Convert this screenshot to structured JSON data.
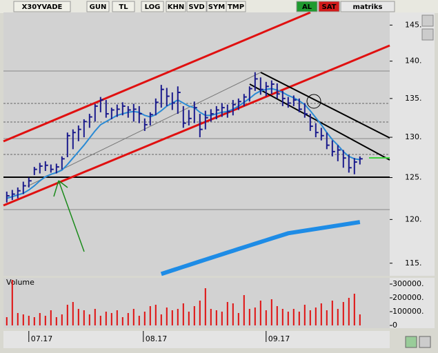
{
  "toolbar": {
    "symbol": "X30YVADE",
    "buttons": [
      "GUN",
      "TL",
      "LOG",
      "KHN",
      "SVD",
      "SYM",
      "TMP"
    ],
    "buy": "AL",
    "sell": "SAT",
    "brand": "matriks"
  },
  "chart_data": [
    {
      "type": "ohlc",
      "bar_color": "#1a1a8c",
      "log_scale": true,
      "ylim": [
        113.6,
        146.8
      ],
      "xlim": [
        -0.6,
        69.4
      ],
      "yticks": [
        {
          "value": 115,
          "label": "115."
        },
        {
          "value": 120,
          "label": "120."
        },
        {
          "value": 125,
          "label": "125."
        },
        {
          "value": 130,
          "label": "130."
        },
        {
          "value": 135,
          "label": "135."
        },
        {
          "value": 140,
          "label": "140."
        },
        {
          "value": 145,
          "label": "145."
        }
      ],
      "high": [
        123.3,
        123.5,
        123.8,
        124.5,
        125.0,
        126.3,
        126.8,
        127.0,
        126.6,
        126.7,
        127.6,
        130.6,
        131.0,
        131.5,
        132.3,
        133.0,
        134.3,
        135.2,
        134.8,
        133.8,
        134.2,
        134.5,
        134.0,
        134.3,
        134.0,
        132.4,
        133.2,
        135.0,
        136.8,
        136.4,
        135.8,
        136.6,
        134.0,
        133.5,
        134.6,
        133.0,
        133.4,
        133.6,
        134.0,
        134.4,
        134.2,
        134.8,
        135.0,
        135.6,
        136.6,
        138.5,
        137.8,
        137.2,
        137.4,
        137.0,
        136.0,
        135.2,
        135.4,
        135.0,
        134.4,
        133.0,
        131.8,
        131.2,
        130.6,
        129.6,
        129.0,
        128.4,
        127.8,
        127.4,
        127.6
      ],
      "low": [
        122.0,
        122.3,
        122.5,
        123.0,
        123.8,
        125.3,
        125.5,
        125.8,
        125.6,
        125.5,
        126.0,
        127.5,
        128.5,
        129.5,
        130.0,
        131.2,
        132.0,
        133.2,
        132.5,
        132.3,
        132.6,
        132.8,
        132.5,
        132.0,
        131.8,
        130.8,
        131.5,
        132.8,
        133.8,
        134.0,
        133.5,
        133.0,
        131.2,
        131.5,
        131.8,
        130.0,
        131.0,
        132.0,
        132.3,
        132.6,
        132.5,
        132.8,
        133.5,
        134.0,
        134.6,
        136.0,
        135.5,
        135.3,
        135.6,
        135.0,
        134.0,
        133.8,
        134.0,
        133.2,
        132.5,
        130.8,
        130.0,
        129.6,
        128.5,
        127.6,
        127.0,
        126.2,
        125.6,
        125.4,
        126.6
      ],
      "close": [
        122.8,
        123.0,
        123.4,
        124.0,
        124.6,
        126.0,
        126.4,
        126.5,
        126.0,
        126.3,
        127.3,
        130.2,
        130.6,
        131.0,
        132.0,
        132.6,
        134.0,
        134.8,
        133.0,
        133.5,
        133.6,
        134.0,
        133.5,
        133.6,
        133.0,
        131.6,
        132.9,
        134.5,
        136.2,
        135.3,
        134.4,
        135.8,
        131.8,
        132.4,
        133.8,
        131.0,
        132.5,
        133.0,
        133.5,
        133.8,
        133.3,
        134.2,
        134.6,
        135.2,
        136.3,
        137.6,
        136.2,
        136.6,
        136.9,
        135.6,
        135.0,
        134.4,
        134.8,
        133.6,
        133.0,
        131.4,
        130.6,
        130.2,
        129.0,
        128.2,
        128.4,
        127.4,
        126.2,
        126.9,
        127.3
      ],
      "lines": [
        {
          "color": "#2a8ad4",
          "width": 2,
          "values": [
            122.5,
            122.7,
            122.9,
            123.1,
            123.5,
            124.0,
            124.6,
            125.1,
            125.4,
            125.6,
            125.9,
            126.6,
            127.4,
            128.2,
            129.0,
            129.9,
            130.8,
            131.6,
            132.0,
            132.4,
            132.8,
            133.0,
            133.2,
            133.3,
            133.2,
            132.8,
            132.6,
            132.9,
            133.4,
            134.0,
            134.4,
            134.8,
            134.4,
            134.0,
            133.8,
            133.2,
            132.8,
            132.8,
            133.0,
            133.2,
            133.3,
            133.6,
            134.0,
            134.5,
            135.0,
            135.6,
            136.0,
            136.2,
            136.3,
            136.1,
            135.8,
            135.4,
            135.1,
            134.7,
            134.2,
            133.4,
            132.5,
            131.6,
            130.6,
            129.7,
            129.0,
            128.2,
            127.6,
            127.3,
            127.2
          ]
        },
        {
          "color": "#1e8ce6",
          "width": 6,
          "values": [
            null,
            null,
            null,
            null,
            null,
            null,
            null,
            null,
            null,
            null,
            null,
            null,
            null,
            null,
            null,
            null,
            null,
            null,
            null,
            null,
            null,
            null,
            null,
            null,
            null,
            null,
            null,
            null,
            113.8,
            114.0,
            114.2,
            114.4,
            114.6,
            114.8,
            115.0,
            115.2,
            115.4,
            115.6,
            115.8,
            116.0,
            116.2,
            116.4,
            116.6,
            116.8,
            117.0,
            117.2,
            117.4,
            117.6,
            117.8,
            118.0,
            118.2,
            118.4,
            118.5,
            118.6,
            118.7,
            118.8,
            118.9,
            119.0,
            119.1,
            119.2,
            119.3,
            119.4,
            119.5,
            119.6,
            119.7
          ]
        }
      ]
    },
    {
      "type": "bar",
      "title": "Volume",
      "color": "#e01010",
      "ylim": [
        -20000,
        345000
      ],
      "xlim": [
        -0.6,
        69.4
      ],
      "yticks": [
        0,
        {
          "value": 100000,
          "label": "100000."
        },
        {
          "value": 200000,
          "label": "200000."
        },
        {
          "value": 300000,
          "label": "300000."
        }
      ],
      "xticks": [
        {
          "value": 4,
          "label": "07.17"
        },
        {
          "value": 24.75,
          "label": "08.17"
        },
        {
          "value": 47,
          "label": "09.17"
        }
      ],
      "values": [
        60000,
        330000,
        90000,
        80000,
        70000,
        60000,
        90000,
        70000,
        110000,
        60000,
        80000,
        150000,
        170000,
        120000,
        110000,
        80000,
        120000,
        70000,
        100000,
        90000,
        110000,
        60000,
        90000,
        120000,
        70000,
        100000,
        140000,
        150000,
        80000,
        130000,
        110000,
        120000,
        160000,
        100000,
        140000,
        180000,
        270000,
        120000,
        110000,
        100000,
        170000,
        160000,
        90000,
        220000,
        120000,
        130000,
        180000,
        110000,
        190000,
        140000,
        120000,
        100000,
        120000,
        100000,
        150000,
        110000,
        130000,
        160000,
        110000,
        180000,
        120000,
        170000,
        200000,
        230000,
        80000
      ]
    }
  ]
}
